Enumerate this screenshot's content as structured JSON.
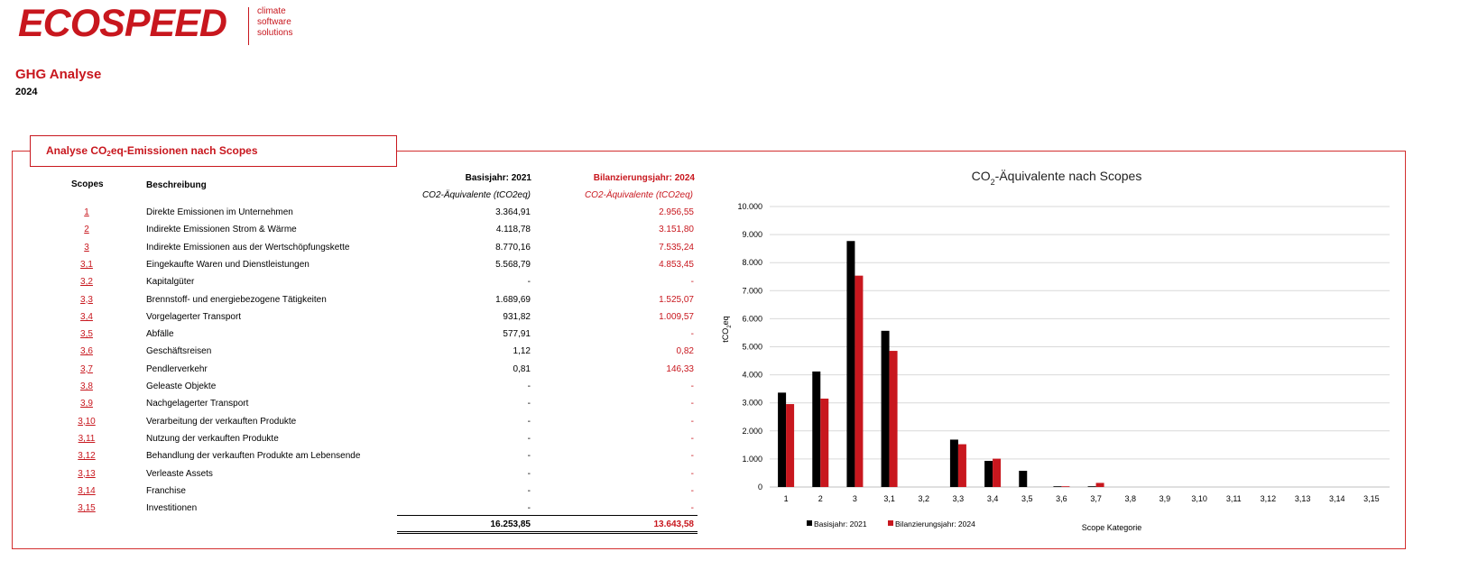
{
  "logo": {
    "wordmark": "ECOSPEED",
    "tagline": [
      "climate",
      "software",
      "solutions"
    ]
  },
  "header": {
    "title": "GHG Analyse",
    "year": "2024"
  },
  "panel": {
    "title_pre": "Analyse CO",
    "title_sub": "2",
    "title_post": "eq-Emissionen nach Scopes"
  },
  "table": {
    "col_scopes": "Scopes",
    "col_desc": "Beschreibung",
    "col_base": "Basisjahr: 2021",
    "col_year": "Bilanzierungsjahr: 2024",
    "unit_base": "CO2-Äquivalente (tCO2eq)",
    "unit_year": "CO2-Äquivalente (tCO2eq)",
    "rows": [
      {
        "scope": "1",
        "desc": "Direkte Emissionen im Unternehmen",
        "base": "3.364,91",
        "year": "2.956,55"
      },
      {
        "scope": "2",
        "desc": "Indirekte Emissionen Strom & Wärme",
        "base": "4.118,78",
        "year": "3.151,80"
      },
      {
        "scope": "3",
        "desc": "Indirekte Emissionen aus der Wertschöpfungskette",
        "base": "8.770,16",
        "year": "7.535,24"
      },
      {
        "scope": "3,1",
        "desc": "Eingekaufte Waren und Dienstleistungen",
        "base": "5.568,79",
        "year": "4.853,45"
      },
      {
        "scope": "3,2",
        "desc": "Kapitalgüter",
        "base": "-",
        "year": "-"
      },
      {
        "scope": "3,3",
        "desc": "Brennstoff- und energiebezogene Tätigkeiten",
        "base": "1.689,69",
        "year": "1.525,07"
      },
      {
        "scope": "3,4",
        "desc": "Vorgelagerter Transport",
        "base": "931,82",
        "year": "1.009,57"
      },
      {
        "scope": "3,5",
        "desc": "Abfälle",
        "base": "577,91",
        "year": "-"
      },
      {
        "scope": "3,6",
        "desc": "Geschäftsreisen",
        "base": "1,12",
        "year": "0,82"
      },
      {
        "scope": "3,7",
        "desc": "Pendlerverkehr",
        "base": "0,81",
        "year": "146,33"
      },
      {
        "scope": "3,8",
        "desc": "Geleaste Objekte",
        "base": "-",
        "year": "-"
      },
      {
        "scope": "3,9",
        "desc": "Nachgelagerter Transport",
        "base": "-",
        "year": "-"
      },
      {
        "scope": "3,10",
        "desc": "Verarbeitung der verkauften Produkte",
        "base": "-",
        "year": "-"
      },
      {
        "scope": "3,11",
        "desc": "Nutzung der verkauften Produkte",
        "base": "-",
        "year": "-"
      },
      {
        "scope": "3,12",
        "desc": "Behandlung der verkauften Produkte am Lebensende",
        "base": "-",
        "year": "-"
      },
      {
        "scope": "3,13",
        "desc": "Verleaste Assets",
        "base": "-",
        "year": "-"
      },
      {
        "scope": "3,14",
        "desc": "Franchise",
        "base": "-",
        "year": "-"
      },
      {
        "scope": "3,15",
        "desc": "Investitionen",
        "base": "-",
        "year": "-"
      }
    ],
    "total_base": "16.253,85",
    "total_year": "13.643,58"
  },
  "colors": {
    "brand_red": "#c8171e",
    "base_series": "#000000",
    "year_series": "#c8171e",
    "grid": "#d9d9d9"
  },
  "chart_data": {
    "type": "bar",
    "title_pre": "CO",
    "title_sub": "2",
    "title_post": "-Äquivalente nach Scopes",
    "xlabel": "Scope Kategorie",
    "ylabel_pre": "tCO",
    "ylabel_sub": "2",
    "ylabel_post": "eq",
    "ylim": [
      0,
      10000
    ],
    "yticks": [
      0,
      1000,
      2000,
      3000,
      4000,
      5000,
      6000,
      7000,
      8000,
      9000,
      10000
    ],
    "ytick_labels": [
      "0",
      "1.000",
      "2.000",
      "3.000",
      "4.000",
      "5.000",
      "6.000",
      "7.000",
      "8.000",
      "9.000",
      "10.000"
    ],
    "grid": true,
    "legend_position": "bottom-left",
    "categories": [
      "1",
      "2",
      "3",
      "3,1",
      "3,2",
      "3,3",
      "3,4",
      "3,5",
      "3,6",
      "3,7",
      "3,8",
      "3,9",
      "3,10",
      "3,11",
      "3,12",
      "3,13",
      "3,14",
      "3,15"
    ],
    "series": [
      {
        "name": "Basisjahr: 2021",
        "color": "#000000",
        "values": [
          3364.91,
          4118.78,
          8770.16,
          5568.79,
          0,
          1689.69,
          931.82,
          577.91,
          1.12,
          0.81,
          0,
          0,
          0,
          0,
          0,
          0,
          0,
          0
        ]
      },
      {
        "name": "Bilanzierungsjahr: 2024",
        "color": "#c8171e",
        "values": [
          2956.55,
          3151.8,
          7535.24,
          4853.45,
          0,
          1525.07,
          1009.57,
          0,
          0.82,
          146.33,
          0,
          0,
          0,
          0,
          0,
          0,
          0,
          0
        ]
      }
    ]
  }
}
